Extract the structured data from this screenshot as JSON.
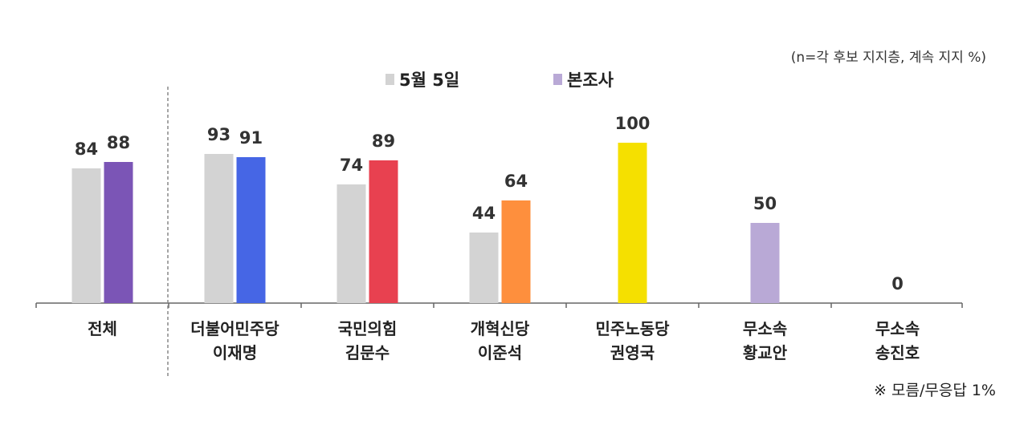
{
  "notes": {
    "top": "(n=각 후보 지지층, 계속 지지 %)",
    "bottom": "※ 모름/무응답 1%"
  },
  "chart_data": {
    "type": "bar",
    "categories": [
      {
        "line1": "전체",
        "line2": ""
      },
      {
        "line1": "더불어민주당",
        "line2": "이재명"
      },
      {
        "line1": "국민의힘",
        "line2": "김문수"
      },
      {
        "line1": "개혁신당",
        "line2": "이준석"
      },
      {
        "line1": "민주노동당",
        "line2": "권영국"
      },
      {
        "line1": "무소속",
        "line2": "황교안"
      },
      {
        "line1": "무소속",
        "line2": "송진호"
      }
    ],
    "series": [
      {
        "name": "5월 5일",
        "color": "#d3d3d3",
        "values": [
          84,
          93,
          74,
          44,
          null,
          null,
          null
        ]
      },
      {
        "name": "본조사",
        "color": "#b9a9d6",
        "bar_colors": [
          "#7b55b6",
          "#4666e5",
          "#e84150",
          "#fe8f3d",
          "#f5e000",
          "#b9a9d6",
          "#b9a9d6"
        ],
        "values": [
          88,
          91,
          89,
          64,
          100,
          50,
          0
        ]
      }
    ],
    "ylim": [
      0,
      100
    ],
    "grid": false,
    "legend_position": "top-center"
  }
}
